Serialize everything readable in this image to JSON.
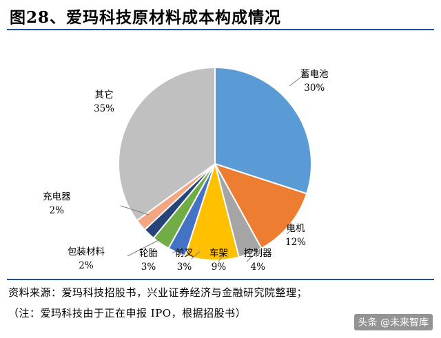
{
  "header": {
    "title": "图28、爱玛科技原材料成本构成情况"
  },
  "chart_data": {
    "type": "pie",
    "title": "",
    "slices": [
      {
        "name": "蓄电池",
        "value": 30,
        "label": "30%",
        "color": "#5b9bd5"
      },
      {
        "name": "电机",
        "value": 12,
        "label": "12%",
        "color": "#ed7d31"
      },
      {
        "name": "控制器",
        "value": 4,
        "label": "4%",
        "color": "#a5a5a5"
      },
      {
        "name": "车架",
        "value": 9,
        "label": "9%",
        "color": "#ffc000"
      },
      {
        "name": "前叉",
        "value": 3,
        "label": "3%",
        "color": "#4472c4"
      },
      {
        "name": "轮胎",
        "value": 3,
        "label": "3%",
        "color": "#70ad47"
      },
      {
        "name": "包装材料",
        "value": 2,
        "label": "2%",
        "color": "#264478"
      },
      {
        "name": "充电器",
        "value": 2,
        "label": "2%",
        "color": "#f4a582"
      },
      {
        "name": "其它",
        "value": 35,
        "label": "35%",
        "color": "#c0c0c0"
      }
    ]
  },
  "footer": {
    "source": "资料来源：爱玛科技招股书，兴业证券经济与金融研究院整理；",
    "note": "（注：爱玛科技由于正在申报 IPO，根据招股书）",
    "watermark": "头条 @未来智库"
  }
}
